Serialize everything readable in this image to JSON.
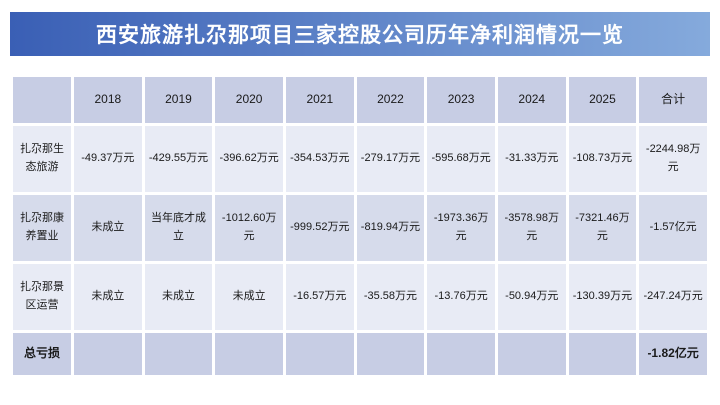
{
  "title": "西安旅游扎尕那项目三家控股公司历年净利润情况一览",
  "theme": {
    "title_gradient_left": "#3a5fb5",
    "title_gradient_right": "#85aadc",
    "title_text": "#ffffff",
    "band_dark": "#c7cde4",
    "band_medium": "#d6dbeb",
    "band_light": "#e8ebf5",
    "body_text": "#1a1a1a"
  },
  "table": {
    "columns": [
      "",
      "2018",
      "2019",
      "2020",
      "2021",
      "2022",
      "2023",
      "2024",
      "2025",
      "合计"
    ],
    "rows": [
      {
        "label": "扎尕那生态旅游",
        "values": [
          "-49.37万元",
          "-429.55万元",
          "-396.62万元",
          "-354.53万元",
          "-279.17万元",
          "-595.68万元",
          "-31.33万元",
          "-108.73万元",
          "-2244.98万元"
        ]
      },
      {
        "label": "扎尕那康养置业",
        "values": [
          "未成立",
          "当年底才成立",
          "-1012.60万元",
          "-999.52万元",
          "-819.94万元",
          "-1973.36万元",
          "-3578.98万元",
          "-7321.46万元",
          "-1.57亿元"
        ]
      },
      {
        "label": "扎尕那景区运营",
        "values": [
          "未成立",
          "未成立",
          "未成立",
          "-16.57万元",
          "-35.58万元",
          "-13.76万元",
          "-50.94万元",
          "-130.39万元",
          "-247.24万元"
        ]
      },
      {
        "label": "总亏损",
        "values": [
          "",
          "",
          "",
          "",
          "",
          "",
          "",
          "",
          "-1.82亿元"
        ]
      }
    ]
  }
}
